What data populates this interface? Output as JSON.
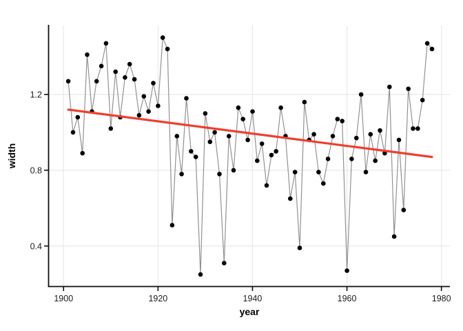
{
  "chart_data": {
    "type": "line",
    "title": "",
    "xlabel": "year",
    "ylabel": "width",
    "grid": true,
    "legend_position": "none",
    "xlim": [
      1896.9,
      1981.8
    ],
    "ylim": [
      0.188,
      1.564
    ],
    "xticks": [
      1900,
      1920,
      1940,
      1960,
      1980
    ],
    "xtick_labels": [
      "1900",
      "1920",
      "1940",
      "1960",
      "1980"
    ],
    "yticks": [
      0.4,
      0.8,
      1.2
    ],
    "ytick_labels": [
      "0.4",
      "0.8",
      "1.2"
    ],
    "series": [
      {
        "name": "width",
        "x": [
          1901,
          1902,
          1903,
          1904,
          1905,
          1906,
          1907,
          1908,
          1909,
          1910,
          1911,
          1912,
          1913,
          1914,
          1915,
          1916,
          1917,
          1918,
          1919,
          1920,
          1921,
          1922,
          1923,
          1924,
          1925,
          1926,
          1927,
          1928,
          1929,
          1930,
          1931,
          1932,
          1933,
          1934,
          1935,
          1936,
          1937,
          1938,
          1939,
          1940,
          1941,
          1942,
          1943,
          1944,
          1945,
          1946,
          1947,
          1948,
          1949,
          1950,
          1951,
          1952,
          1953,
          1954,
          1955,
          1956,
          1957,
          1958,
          1959,
          1960,
          1961,
          1962,
          1963,
          1964,
          1965,
          1966,
          1967,
          1968,
          1969,
          1970,
          1971,
          1972,
          1973,
          1974,
          1975,
          1976,
          1977,
          1978
        ],
        "y": [
          1.27,
          1.0,
          1.08,
          0.89,
          1.41,
          1.11,
          1.27,
          1.35,
          1.47,
          1.02,
          1.32,
          1.08,
          1.29,
          1.36,
          1.28,
          1.09,
          1.19,
          1.11,
          1.26,
          1.14,
          1.5,
          1.44,
          0.51,
          0.98,
          0.78,
          1.18,
          0.9,
          0.87,
          0.25,
          1.1,
          0.95,
          1.0,
          0.78,
          0.31,
          0.98,
          0.8,
          1.13,
          1.07,
          0.96,
          1.11,
          0.85,
          0.94,
          0.72,
          0.88,
          0.9,
          1.13,
          0.98,
          0.65,
          0.79,
          0.39,
          1.16,
          0.96,
          0.99,
          0.79,
          0.73,
          0.86,
          0.98,
          1.07,
          1.06,
          0.27,
          0.86,
          0.97,
          1.2,
          0.79,
          0.99,
          0.85,
          1.01,
          0.89,
          1.24,
          0.45,
          0.96,
          0.59,
          1.23,
          1.02,
          1.02,
          1.17,
          1.47,
          1.44
        ]
      }
    ],
    "trend_line": {
      "name": "linear-trend",
      "x": [
        1901,
        1978
      ],
      "y": [
        1.12,
        0.87
      ]
    },
    "colors": {
      "point": "#000000",
      "series_line": "#919191",
      "trend": "#ee3f2e",
      "grid": "#e8e8e8",
      "axis": "#0d0d0d",
      "tick_text": "#1a1a1a"
    }
  }
}
